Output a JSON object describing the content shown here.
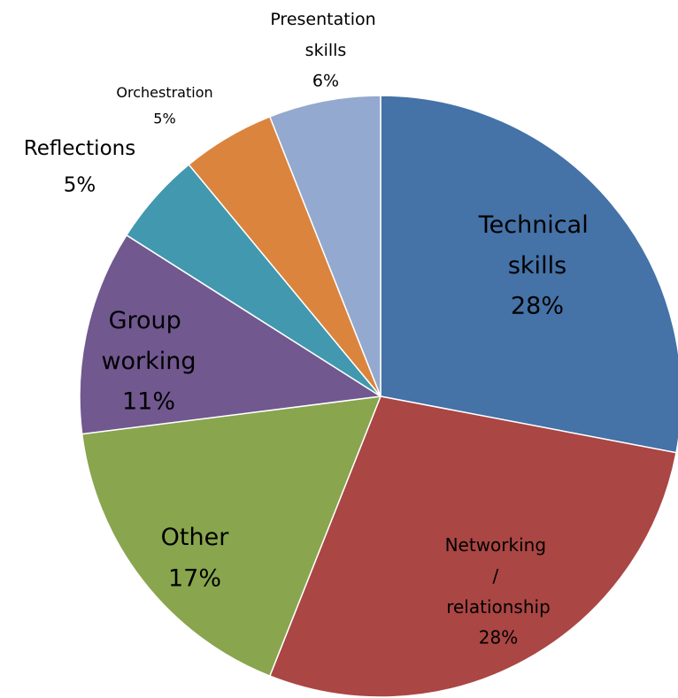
{
  "chart_data": {
    "type": "pie",
    "categories": [
      "Technical skills",
      "Networking / relationship",
      "Other",
      "Group working",
      "Reflections",
      "Orchestration",
      "Presentation skills"
    ],
    "values": [
      28,
      28,
      17,
      11,
      5,
      5,
      6
    ],
    "value_labels": [
      "28%",
      "28%",
      "17%",
      "11%",
      "5%",
      "5%",
      "6%"
    ],
    "colors": [
      "#4572a7",
      "#aa4643",
      "#89a54e",
      "#71588f",
      "#4198af",
      "#db843d",
      "#93a9cf"
    ]
  }
}
